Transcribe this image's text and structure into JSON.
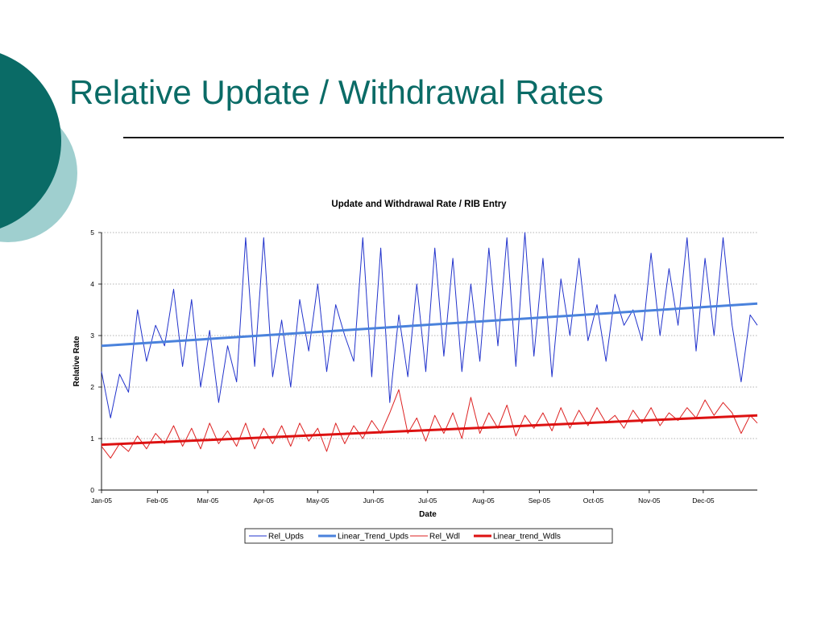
{
  "slide": {
    "title": "Relative Update / Withdrawal Rates",
    "accent_dark": "#0a6b66",
    "accent_light": "#9fcfcf"
  },
  "chart_data": {
    "type": "line",
    "title": "Update and Withdrawal Rate / RIB Entry",
    "xlabel": "Date",
    "ylabel": "Relative Rate",
    "ylim": [
      0,
      5
    ],
    "yticks": [
      0,
      1,
      2,
      3,
      4,
      5
    ],
    "x_range": [
      "2005-01-01",
      "2005-12-31"
    ],
    "x_tick_labels": [
      "Jan-05",
      "Feb-05",
      "Mar-05",
      "Apr-05",
      "May-05",
      "Jun-05",
      "Jul-05",
      "Aug-05",
      "Sep-05",
      "Oct-05",
      "Nov-05",
      "Dec-05"
    ],
    "grid": "horizontal dotted",
    "legend_position": "bottom",
    "series": [
      {
        "name": "Rel_Upds",
        "style": "thin",
        "color": "#2233cc",
        "x": [
          "2005-01-01",
          "2005-01-06",
          "2005-01-11",
          "2005-01-16",
          "2005-01-21",
          "2005-01-26",
          "2005-01-31",
          "2005-02-05",
          "2005-02-10",
          "2005-02-15",
          "2005-02-20",
          "2005-02-25",
          "2005-03-02",
          "2005-03-07",
          "2005-03-12",
          "2005-03-17",
          "2005-03-22",
          "2005-03-27",
          "2005-04-01",
          "2005-04-06",
          "2005-04-11",
          "2005-04-16",
          "2005-04-21",
          "2005-04-26",
          "2005-05-01",
          "2005-05-06",
          "2005-05-11",
          "2005-05-16",
          "2005-05-21",
          "2005-05-26",
          "2005-05-31",
          "2005-06-05",
          "2005-06-10",
          "2005-06-15",
          "2005-06-20",
          "2005-06-25",
          "2005-06-30",
          "2005-07-05",
          "2005-07-10",
          "2005-07-15",
          "2005-07-20",
          "2005-07-25",
          "2005-07-30",
          "2005-08-04",
          "2005-08-09",
          "2005-08-14",
          "2005-08-19",
          "2005-08-24",
          "2005-08-29",
          "2005-09-03",
          "2005-09-08",
          "2005-09-13",
          "2005-09-18",
          "2005-09-23",
          "2005-09-28",
          "2005-10-03",
          "2005-10-08",
          "2005-10-13",
          "2005-10-18",
          "2005-10-23",
          "2005-10-28",
          "2005-11-02",
          "2005-11-07",
          "2005-11-12",
          "2005-11-17",
          "2005-11-22",
          "2005-11-27",
          "2005-12-02",
          "2005-12-07",
          "2005-12-12",
          "2005-12-17",
          "2005-12-22",
          "2005-12-27",
          "2005-12-31"
        ],
        "values": [
          2.3,
          1.4,
          2.25,
          1.9,
          3.5,
          2.5,
          3.2,
          2.8,
          3.9,
          2.4,
          3.7,
          2.0,
          3.1,
          1.7,
          2.8,
          2.1,
          4.9,
          2.4,
          4.9,
          2.2,
          3.3,
          2.0,
          3.7,
          2.7,
          4.0,
          2.3,
          3.6,
          3.0,
          2.5,
          4.9,
          2.2,
          4.7,
          1.7,
          3.4,
          2.2,
          4.0,
          2.3,
          4.7,
          2.6,
          4.5,
          2.3,
          4.0,
          2.5,
          4.7,
          2.8,
          4.9,
          2.4,
          5.0,
          2.6,
          4.5,
          2.2,
          4.1,
          3.0,
          4.5,
          2.9,
          3.6,
          2.5,
          3.8,
          3.2,
          3.5,
          2.9,
          4.6,
          3.0,
          4.3,
          3.2,
          4.9,
          2.7,
          4.5,
          3.0,
          4.9,
          3.2,
          2.1,
          3.4,
          3.2
        ]
      },
      {
        "name": "Linear_Trend_Upds",
        "style": "thick",
        "color": "#4a82dc",
        "x": [
          "2005-01-01",
          "2005-12-31"
        ],
        "values": [
          2.8,
          3.62
        ]
      },
      {
        "name": "Rel_Wdl",
        "style": "thin",
        "color": "#dd2222",
        "x": [
          "2005-01-01",
          "2005-01-06",
          "2005-01-11",
          "2005-01-16",
          "2005-01-21",
          "2005-01-26",
          "2005-01-31",
          "2005-02-05",
          "2005-02-10",
          "2005-02-15",
          "2005-02-20",
          "2005-02-25",
          "2005-03-02",
          "2005-03-07",
          "2005-03-12",
          "2005-03-17",
          "2005-03-22",
          "2005-03-27",
          "2005-04-01",
          "2005-04-06",
          "2005-04-11",
          "2005-04-16",
          "2005-04-21",
          "2005-04-26",
          "2005-05-01",
          "2005-05-06",
          "2005-05-11",
          "2005-05-16",
          "2005-05-21",
          "2005-05-26",
          "2005-05-31",
          "2005-06-05",
          "2005-06-10",
          "2005-06-15",
          "2005-06-20",
          "2005-06-25",
          "2005-06-30",
          "2005-07-05",
          "2005-07-10",
          "2005-07-15",
          "2005-07-20",
          "2005-07-25",
          "2005-07-30",
          "2005-08-04",
          "2005-08-09",
          "2005-08-14",
          "2005-08-19",
          "2005-08-24",
          "2005-08-29",
          "2005-09-03",
          "2005-09-08",
          "2005-09-13",
          "2005-09-18",
          "2005-09-23",
          "2005-09-28",
          "2005-10-03",
          "2005-10-08",
          "2005-10-13",
          "2005-10-18",
          "2005-10-23",
          "2005-10-28",
          "2005-11-02",
          "2005-11-07",
          "2005-11-12",
          "2005-11-17",
          "2005-11-22",
          "2005-11-27",
          "2005-12-02",
          "2005-12-07",
          "2005-12-12",
          "2005-12-17",
          "2005-12-22",
          "2005-12-27",
          "2005-12-31"
        ],
        "values": [
          0.85,
          0.62,
          0.9,
          0.75,
          1.05,
          0.8,
          1.1,
          0.9,
          1.25,
          0.85,
          1.2,
          0.8,
          1.3,
          0.9,
          1.15,
          0.85,
          1.3,
          0.8,
          1.2,
          0.9,
          1.25,
          0.85,
          1.3,
          0.95,
          1.2,
          0.75,
          1.3,
          0.9,
          1.25,
          1.0,
          1.35,
          1.1,
          1.5,
          1.95,
          1.1,
          1.4,
          0.95,
          1.45,
          1.1,
          1.5,
          1.0,
          1.8,
          1.1,
          1.5,
          1.2,
          1.65,
          1.05,
          1.45,
          1.2,
          1.5,
          1.15,
          1.6,
          1.2,
          1.55,
          1.25,
          1.6,
          1.3,
          1.45,
          1.2,
          1.55,
          1.3,
          1.6,
          1.25,
          1.5,
          1.35,
          1.6,
          1.4,
          1.75,
          1.45,
          1.7,
          1.5,
          1.1,
          1.45,
          1.3
        ]
      },
      {
        "name": "Linear_trend_Wdls",
        "style": "thick",
        "color": "#dd1111",
        "x": [
          "2005-01-01",
          "2005-12-31"
        ],
        "values": [
          0.88,
          1.45
        ]
      }
    ]
  }
}
